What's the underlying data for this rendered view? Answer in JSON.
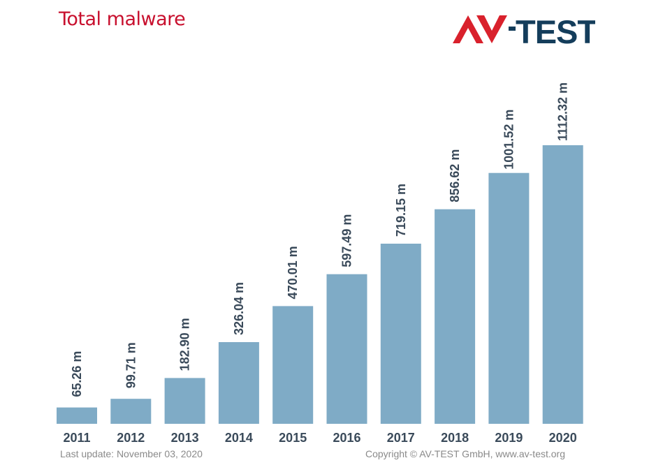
{
  "header": {
    "title": "Total malware",
    "logo_text": "AV-TEST"
  },
  "footer": {
    "last_update": "Last update: November 03, 2020",
    "copyright": "Copyright © AV-TEST GmbH, www.av-test.org"
  },
  "colors": {
    "bar": "#7fabc6",
    "title": "#c8102e",
    "label": "#3a4a5a",
    "logo_red": "#d9212c",
    "logo_navy": "#143d5b"
  },
  "chart_data": {
    "type": "bar",
    "title": "Total malware",
    "categories": [
      "2011",
      "2012",
      "2013",
      "2014",
      "2015",
      "2016",
      "2017",
      "2018",
      "2019",
      "2020"
    ],
    "values": [
      65.26,
      99.71,
      182.9,
      326.04,
      470.01,
      597.49,
      719.15,
      856.62,
      1001.52,
      1112.32
    ],
    "value_labels": [
      "65.26 m",
      "99.71 m",
      "182.90 m",
      "326.04 m",
      "470.01 m",
      "597.49 m",
      "719.15 m",
      "856.62 m",
      "1001.52 m",
      "1112.32 m"
    ],
    "unit": "m",
    "xlabel": "",
    "ylabel": "",
    "ylim": [
      0,
      1112.32
    ],
    "grid": false,
    "legend": "none"
  }
}
